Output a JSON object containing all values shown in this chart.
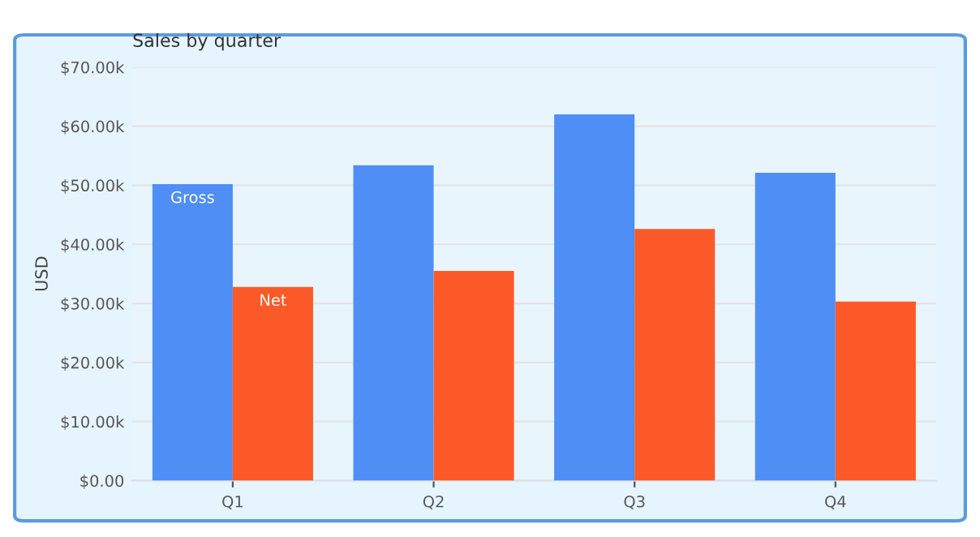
{
  "chart_data": {
    "type": "bar",
    "title": "Sales by quarter",
    "ylabel": "USD",
    "categories": [
      "Q1",
      "Q2",
      "Q3",
      "Q4"
    ],
    "series": [
      {
        "name": "Gross",
        "color": "#4f8ef5",
        "values": [
          50200,
          53400,
          62000,
          52100
        ]
      },
      {
        "name": "Net",
        "color": "#fb5a28",
        "values": [
          32800,
          35500,
          42600,
          30300
        ]
      }
    ],
    "ylim": [
      0,
      70000
    ],
    "yticks": [
      {
        "value": 0,
        "label": "$0.00"
      },
      {
        "value": 10000,
        "label": "$10.00k"
      },
      {
        "value": 20000,
        "label": "$20.00k"
      },
      {
        "value": 30000,
        "label": "$30.00k"
      },
      {
        "value": 40000,
        "label": "$40.00k"
      },
      {
        "value": 50000,
        "label": "$50.00k"
      },
      {
        "value": 60000,
        "label": "$60.00k"
      },
      {
        "value": 70000,
        "label": "$70.00k"
      }
    ],
    "grid": "y",
    "legend": false
  }
}
